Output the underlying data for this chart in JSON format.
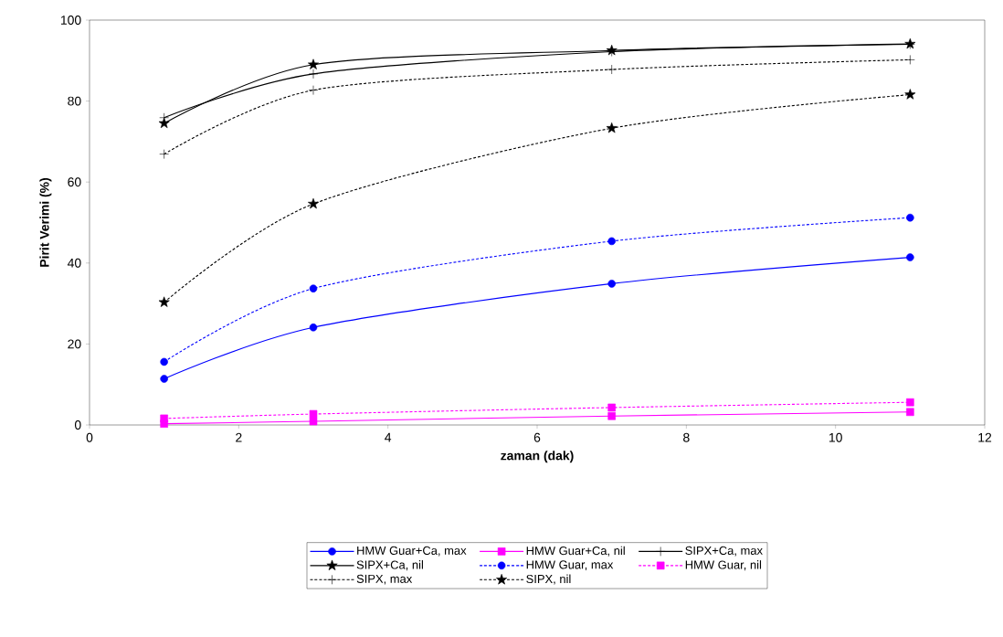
{
  "chart_data": {
    "type": "line",
    "xlabel": "zaman (dak)",
    "ylabel": "Pirit Verimi (%)",
    "x": [
      1,
      3,
      7,
      11
    ],
    "xlim": [
      0,
      12
    ],
    "xticks": [
      0,
      2,
      4,
      6,
      8,
      10,
      12
    ],
    "ylim": [
      0,
      100
    ],
    "yticks": [
      0,
      20,
      40,
      60,
      80,
      100
    ],
    "legend": "bottom",
    "grid": false,
    "series": [
      {
        "name": "HMW Guar+Ca, max",
        "color": "#0000ff",
        "marker": "circle",
        "line_style": "solid",
        "values": [
          11.4,
          24.1,
          34.9,
          41.4
        ]
      },
      {
        "name": "HMW Guar+Ca, nil",
        "color": "#ff00ff",
        "marker": "square",
        "line_style": "solid",
        "values": [
          0.3,
          0.9,
          2.2,
          3.2
        ]
      },
      {
        "name": "SIPX+Ca, max",
        "color": "#000000",
        "marker": "cross",
        "line_style": "solid",
        "values": [
          75.9,
          86.7,
          92.2,
          94
        ]
      },
      {
        "name": "SIPX+Ca, nil",
        "color": "#000000",
        "marker": "star",
        "line_style": "solid",
        "values": [
          74.5,
          89,
          92.5,
          94.1
        ]
      },
      {
        "name": "HMW Guar, max",
        "color": "#0000ff",
        "marker": "circle",
        "line_style": "dashed",
        "values": [
          15.6,
          33.7,
          45.4,
          51.2
        ]
      },
      {
        "name": "HMW Guar, nil",
        "color": "#ff00ff",
        "marker": "square",
        "line_style": "dashed",
        "values": [
          1.6,
          2.7,
          4.3,
          5.6
        ]
      },
      {
        "name": "SIPX, max",
        "color": "#000000",
        "marker": "cross",
        "line_style": "dashed",
        "values": [
          66.9,
          82.7,
          87.8,
          90.2
        ]
      },
      {
        "name": "SIPX, nil",
        "color": "#000000",
        "marker": "star",
        "line_style": "dashed",
        "values": [
          30.3,
          54.6,
          73.3,
          81.6
        ]
      }
    ]
  }
}
